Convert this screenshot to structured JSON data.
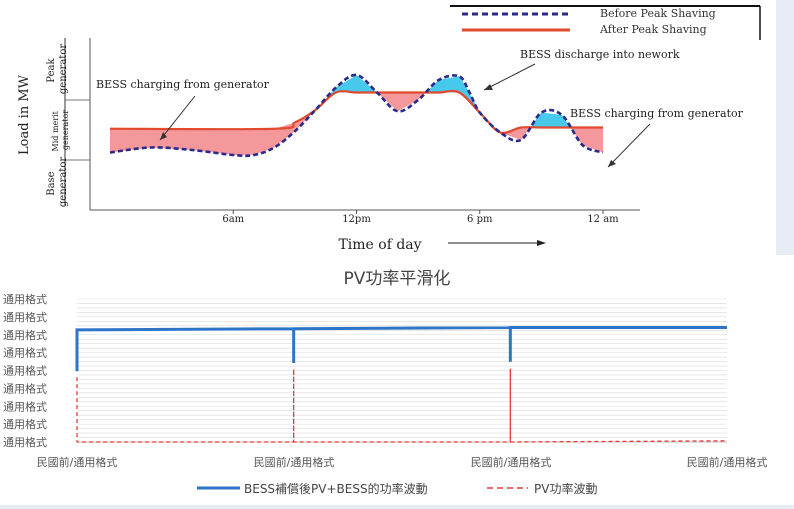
{
  "chart_data": [
    {
      "type": "line",
      "title": "",
      "xlabel": "Time of day",
      "ylabel": "Load in MW",
      "x_ticks": [
        "6am",
        "12pm",
        "6 pm",
        "12 am"
      ],
      "y_bands": [
        "Peak generator",
        "Mid merit generator",
        "Base generator"
      ],
      "legend": {
        "placement": "top-right",
        "entries": [
          "Before Peak Shaving",
          "After Peak Shaving"
        ]
      },
      "annotations": [
        "BESS charging from generator",
        "BESS discharge into nework",
        "BESS charging from generator"
      ],
      "series": [
        {
          "name": "Before Peak Shaving",
          "color": "#2a2a8a",
          "style": "dashed",
          "x": [
            0,
            2,
            4,
            6,
            7,
            8,
            9,
            10,
            11,
            12,
            13,
            14,
            15,
            16,
            17,
            17.5,
            18,
            19,
            20,
            21,
            22,
            23,
            24
          ],
          "y": [
            0.38,
            0.42,
            0.4,
            0.36,
            0.36,
            0.42,
            0.55,
            0.72,
            0.9,
            1.0,
            0.86,
            0.71,
            0.8,
            0.96,
            0.99,
            0.86,
            0.7,
            0.54,
            0.48,
            0.7,
            0.68,
            0.44,
            0.38
          ]
        },
        {
          "name": "After Peak Shaving",
          "color": "#e24a2d",
          "style": "solid",
          "x": [
            0,
            8,
            9,
            10,
            11,
            12,
            13,
            14,
            15,
            16,
            17,
            18,
            19,
            20,
            21,
            22,
            23,
            24
          ],
          "y": [
            0.57,
            0.57,
            0.62,
            0.72,
            0.86,
            0.86,
            0.86,
            0.86,
            0.86,
            0.86,
            0.86,
            0.7,
            0.54,
            0.58,
            0.58,
            0.58,
            0.58,
            0.58
          ]
        }
      ]
    },
    {
      "type": "line",
      "title": "PV功率平滑化",
      "y_tick_labels": [
        "通用格式",
        "通用格式",
        "通用格式",
        "通用格式",
        "通用格式",
        "通用格式",
        "通用格式",
        "通用格式",
        "通用格式"
      ],
      "x_tick_labels": [
        "民國前/通用格式",
        "民國前/通用格式",
        "民國前/通用格式",
        "民國前/通用格式"
      ],
      "legend": {
        "placement": "bottom",
        "entries": [
          "BESS補償後PV+BESS的功率波動",
          "PV功率波動"
        ]
      },
      "series": [
        {
          "name": "BESS補償後PV+BESS的功率波動",
          "color": "#2e75c8",
          "style": "solid",
          "x": [
            0.0,
            0.0,
            1.0,
            1.0,
            1.0,
            2.0,
            2.0,
            2.0,
            3.0
          ],
          "y": [
            0.6,
            0.95,
            0.96,
            0.67,
            0.96,
            0.97,
            0.68,
            0.97,
            0.97
          ]
        },
        {
          "name": "PV功率波動",
          "color": "#e83a3a",
          "style": "dashed",
          "x": [
            0.0,
            0.0,
            1.0,
            1.0,
            1.0,
            2.0,
            2.0,
            2.0,
            3.0
          ],
          "y": [
            0.55,
            0.0,
            0.0,
            0.62,
            0.0,
            0.0,
            0.62,
            0.0,
            0.01
          ]
        }
      ]
    }
  ]
}
